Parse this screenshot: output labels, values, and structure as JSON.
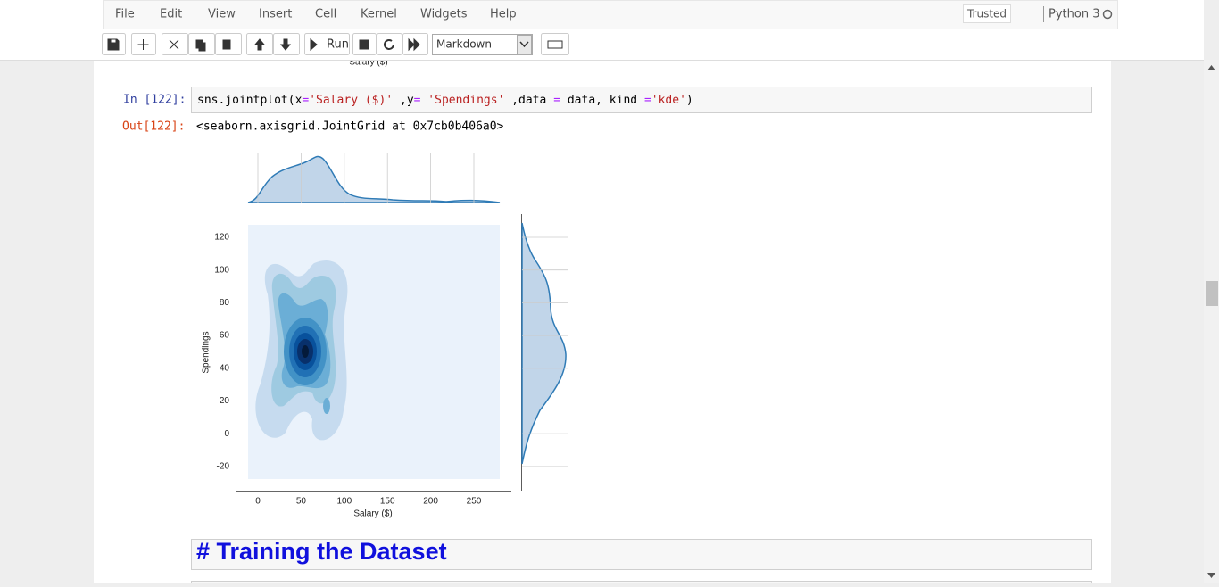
{
  "menu": [
    "File",
    "Edit",
    "View",
    "Insert",
    "Cell",
    "Kernel",
    "Widgets",
    "Help"
  ],
  "trusted": "Trusted",
  "kernel": "Python 3",
  "toolbar": {
    "run": "Run",
    "cell_type": "Markdown"
  },
  "prev_output_label": "Salary ($)",
  "cell": {
    "prompt_in": "In [122]:",
    "code": [
      "sns.jointplot(",
      "x",
      "=",
      "'Salary ($)'",
      " ,",
      "y",
      "=",
      " ",
      "'Spendings'",
      " ,data ",
      "=",
      " data, kind ",
      "=",
      "'kde'",
      ")"
    ],
    "prompt_out": "Out[122]:",
    "output": "<seaborn.axisgrid.JointGrid at 0x7cb0b406a0>"
  },
  "plot": {
    "x_label": "Salary ($)",
    "y_label": "Spendings",
    "xticks": [
      0,
      50,
      100,
      150,
      200,
      250
    ],
    "yticks": [
      120,
      100,
      80,
      60,
      40,
      20,
      0,
      -20
    ]
  },
  "markdown": {
    "text": "# Training the Dataset"
  }
}
